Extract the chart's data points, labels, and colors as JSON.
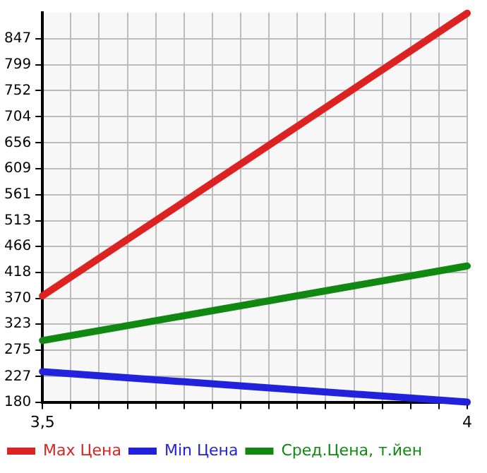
{
  "chart_data": {
    "type": "line",
    "x": [
      3.5,
      4
    ],
    "series": [
      {
        "name": "Max Цена",
        "color": "#dd2222",
        "values": [
          375,
          894
        ]
      },
      {
        "name": "Min Цена",
        "color": "#2222dd",
        "values": [
          236,
          180
        ]
      },
      {
        "name": "Сред.Цена, т.йен",
        "color": "#118811",
        "values": [
          293,
          430
        ]
      }
    ],
    "xlim": [
      3.5,
      4
    ],
    "xticks": [
      {
        "value": 3.5,
        "label": "3,5"
      },
      {
        "value": 3.5333,
        "label": null
      },
      {
        "value": 3.5667,
        "label": null
      },
      {
        "value": 3.6,
        "label": null
      },
      {
        "value": 3.6333,
        "label": null
      },
      {
        "value": 3.6667,
        "label": null
      },
      {
        "value": 3.7,
        "label": null
      },
      {
        "value": 3.7333,
        "label": null
      },
      {
        "value": 3.7667,
        "label": null
      },
      {
        "value": 3.8,
        "label": null
      },
      {
        "value": 3.8333,
        "label": null
      },
      {
        "value": 3.8667,
        "label": null
      },
      {
        "value": 3.9,
        "label": null
      },
      {
        "value": 3.9333,
        "label": null
      },
      {
        "value": 3.9667,
        "label": null
      },
      {
        "value": 4,
        "label": "4"
      }
    ],
    "ylim": [
      180,
      895
    ],
    "yticks": [
      180,
      227,
      275,
      323,
      370,
      418,
      466,
      513,
      561,
      609,
      656,
      704,
      752,
      799,
      847
    ],
    "grid": true,
    "legend": "bottom",
    "marker": "none",
    "line_style": "solid"
  }
}
